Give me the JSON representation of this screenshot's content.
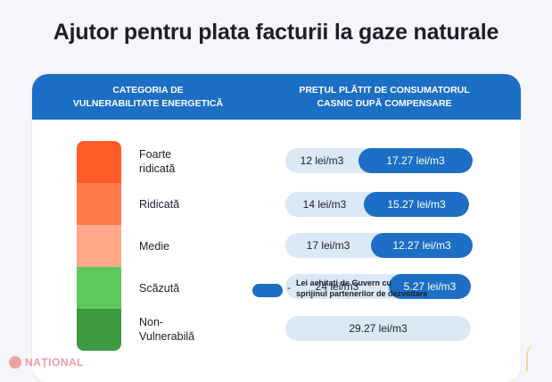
{
  "title": "Ajutor pentru plata facturii la gaze naturale",
  "header": {
    "left_line1": "CATEGORIA DE",
    "left_line2": "VULNERABILITATE ENERGETICĂ",
    "right_line1": "PREȚUL PLĂTIT DE CONSUMATORUL",
    "right_line2": "CASNIC DUPĂ COMPENSARE"
  },
  "rows": [
    {
      "label_line1": "Foarte",
      "label_line2": "ridicată",
      "paid": "12 lei/m3",
      "gov": "17.27 lei/m3",
      "color": "#ff5b26"
    },
    {
      "label_line1": "Ridicată",
      "label_line2": "",
      "paid": "14 lei/m3",
      "gov": "15.27 lei/m3",
      "color": "#ff7a48"
    },
    {
      "label_line1": "Medie",
      "label_line2": "",
      "paid": "17 lei/m3",
      "gov": "12.27 lei/m3",
      "color": "#ffa989"
    },
    {
      "label_line1": "Scăzută",
      "label_line2": "",
      "paid": "24 lei/m3",
      "gov": "5.27 lei/m3",
      "color": "#5dc95c"
    },
    {
      "label_line1": "Non-",
      "label_line2": "Vulnerabilă",
      "paid": "29.27 lei/m3",
      "gov": "",
      "color": "#3e9a40"
    }
  ],
  "legend": {
    "dash": "-",
    "line1": "Lei achitați de Guvern cu",
    "line2": "sprijinul partenerilor de dezvoltare",
    "color": "#1c6fc4"
  },
  "watermark": "NAȚIONAL"
}
